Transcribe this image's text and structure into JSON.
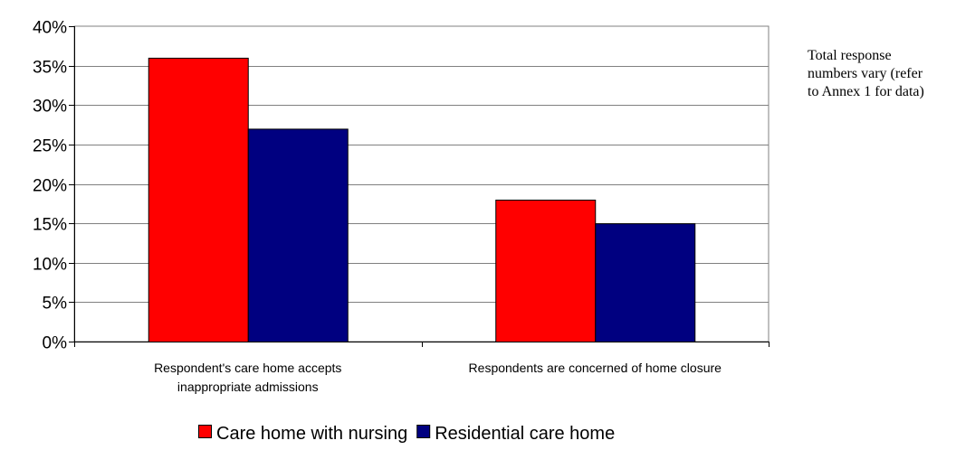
{
  "chart_data": {
    "type": "bar",
    "categories": [
      [
        "Respondent's care home accepts",
        "inappropriate admissions"
      ],
      [
        "Respondents are concerned of home closure"
      ]
    ],
    "series": [
      {
        "name": "Care home with nursing",
        "values": [
          36,
          18
        ],
        "color": "#ff0000"
      },
      {
        "name": "Residential care home",
        "values": [
          27,
          15
        ],
        "color": "#000080"
      }
    ],
    "y_ticks": [
      "0%",
      "5%",
      "10%",
      "15%",
      "20%",
      "25%",
      "30%",
      "35%",
      "40%"
    ],
    "ylim": [
      0,
      40
    ],
    "grid": true,
    "legend_position": "bottom",
    "title": "",
    "xlabel": "",
    "ylabel": ""
  },
  "note": {
    "lines": [
      "Total response",
      "numbers vary (refer",
      "to Annex 1 for data)"
    ]
  }
}
